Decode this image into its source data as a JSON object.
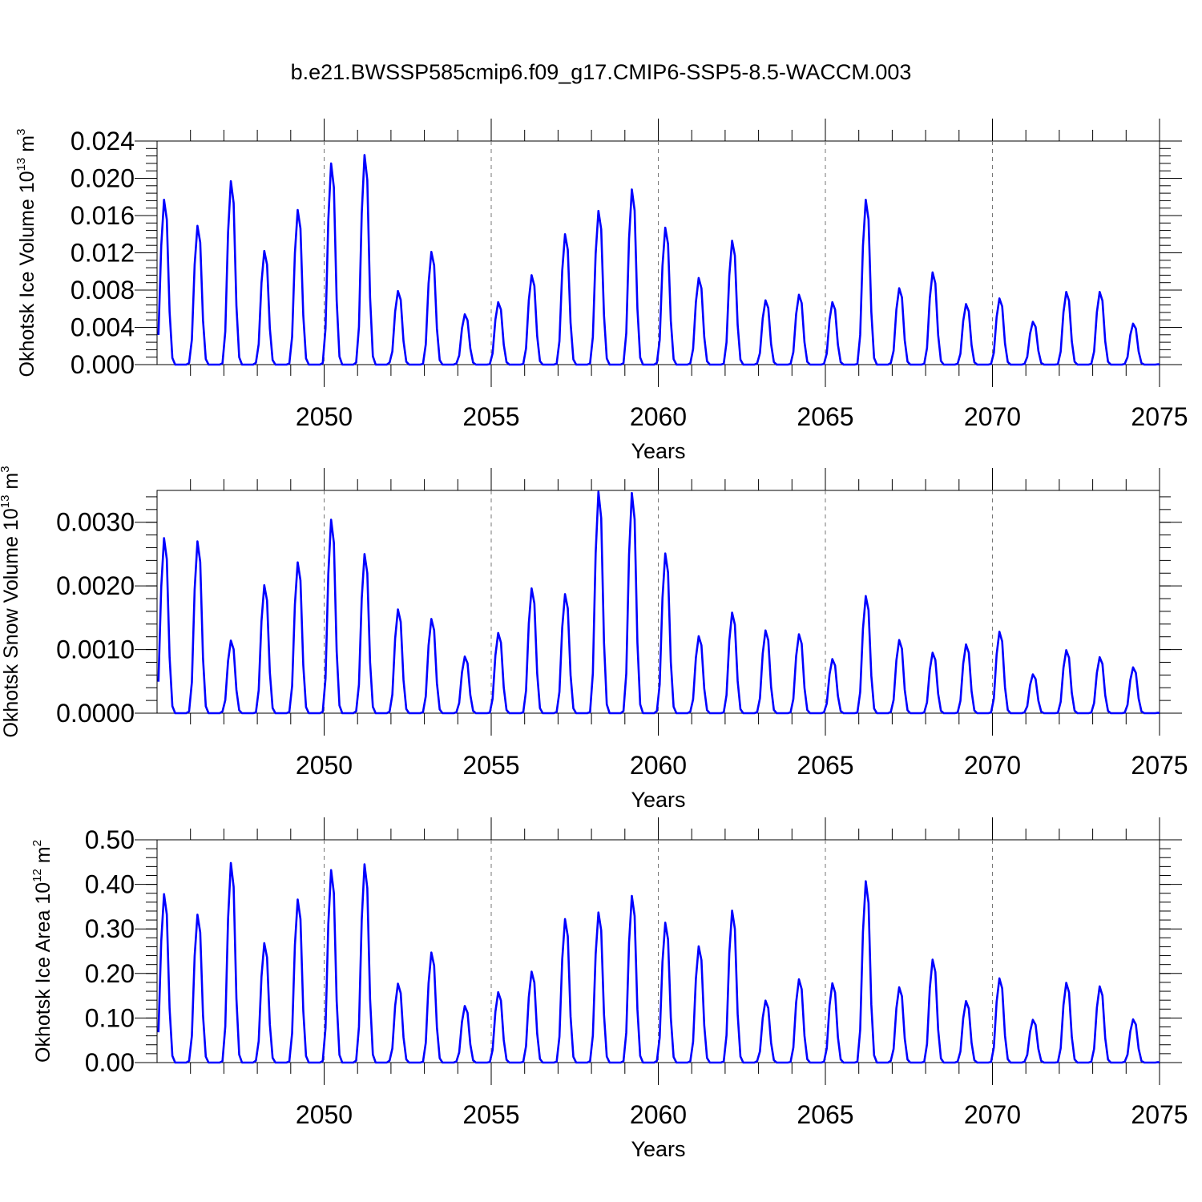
{
  "figure_title": "b.e21.BWSSP585cmip6.f09_g17.CMIP6-SSP5-8.5-WACCM.003",
  "series_color": "#0000ff",
  "chart_data": [
    {
      "type": "line",
      "xlabel": "Years",
      "ylabel_main": "Okhotsk Ice Volume 10",
      "ylabel_exp": "13",
      "ylabel_unit": "m",
      "ylabel_unit_exp": "3",
      "xlim": [
        2045.0,
        2075.0
      ],
      "ylim": [
        0.0,
        0.024
      ],
      "xticks": [
        "2050",
        "2055",
        "2060",
        "2065",
        "2070",
        "2075"
      ],
      "yticks": [
        "0.000",
        "0.004",
        "0.008",
        "0.012",
        "0.016",
        "0.020",
        "0.024"
      ],
      "series": [
        {
          "name": "Okhotsk Ice Volume",
          "start_year": 2045.0,
          "peaks": [
            0.0177,
            0.0149,
            0.0197,
            0.0122,
            0.0166,
            0.0216,
            0.0225,
            0.0079,
            0.0121,
            0.0054,
            0.0067,
            0.0096,
            0.014,
            0.0165,
            0.0188,
            0.0147,
            0.0093,
            0.0133,
            0.0069,
            0.0075,
            0.0067,
            0.0177,
            0.0082,
            0.0099,
            0.0065,
            0.0071,
            0.0046,
            0.0078,
            0.0078,
            0.0044
          ]
        }
      ]
    },
    {
      "type": "line",
      "xlabel": "Years",
      "ylabel_main": "Okhotsk Snow Volume 10",
      "ylabel_exp": "13",
      "ylabel_unit": "m",
      "ylabel_unit_exp": "3",
      "xlim": [
        2045.0,
        2075.0
      ],
      "ylim": [
        0.0,
        0.0035
      ],
      "xticks": [
        "2050",
        "2055",
        "2060",
        "2065",
        "2070",
        "2075"
      ],
      "yticks": [
        "0.0000",
        "0.0010",
        "0.0020",
        "0.0030"
      ],
      "series": [
        {
          "name": "Okhotsk Snow Volume",
          "start_year": 2045.0,
          "peaks": [
            0.00275,
            0.0027,
            0.00114,
            0.00201,
            0.00237,
            0.00304,
            0.0025,
            0.00163,
            0.00148,
            0.00089,
            0.00126,
            0.00196,
            0.00187,
            0.00348,
            0.00346,
            0.00251,
            0.00121,
            0.00158,
            0.0013,
            0.00124,
            0.00085,
            0.00184,
            0.00115,
            0.00095,
            0.00108,
            0.00128,
            0.00061,
            0.00099,
            0.00088,
            0.00072
          ]
        }
      ]
    },
    {
      "type": "line",
      "xlabel": "Years",
      "ylabel_main": "Okhotsk Ice Area 10",
      "ylabel_exp": "12",
      "ylabel_unit": "m",
      "ylabel_unit_exp": "2",
      "xlim": [
        2045.0,
        2075.0
      ],
      "ylim": [
        0.0,
        0.5
      ],
      "xticks": [
        "2050",
        "2055",
        "2060",
        "2065",
        "2070",
        "2075"
      ],
      "yticks": [
        "0.00",
        "0.10",
        "0.20",
        "0.30",
        "0.40",
        "0.50"
      ],
      "series": [
        {
          "name": "Okhotsk Ice Area",
          "start_year": 2045.0,
          "peaks": [
            0.378,
            0.332,
            0.448,
            0.268,
            0.366,
            0.432,
            0.445,
            0.177,
            0.247,
            0.127,
            0.158,
            0.204,
            0.322,
            0.337,
            0.374,
            0.314,
            0.261,
            0.341,
            0.139,
            0.187,
            0.178,
            0.407,
            0.169,
            0.231,
            0.138,
            0.189,
            0.096,
            0.179,
            0.171,
            0.097
          ]
        }
      ]
    }
  ]
}
